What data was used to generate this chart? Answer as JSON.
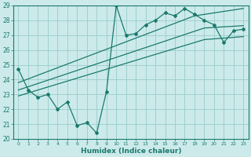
{
  "x": [
    0,
    1,
    2,
    3,
    4,
    5,
    6,
    7,
    8,
    9,
    10,
    11,
    12,
    13,
    14,
    15,
    16,
    17,
    18,
    19,
    20,
    21,
    22,
    23
  ],
  "y_main": [
    24.7,
    23.3,
    22.8,
    23.0,
    22.0,
    22.5,
    20.9,
    21.1,
    20.4,
    23.2,
    29.0,
    27.0,
    27.1,
    27.7,
    28.0,
    28.5,
    28.3,
    28.8,
    28.4,
    28.0,
    27.7,
    26.5,
    27.3,
    27.4
  ],
  "reg_top": [
    23.8,
    24.05,
    24.3,
    24.55,
    24.8,
    25.05,
    25.3,
    25.55,
    25.8,
    26.05,
    26.3,
    26.55,
    26.8,
    27.05,
    27.3,
    27.55,
    27.8,
    28.05,
    28.3,
    28.4,
    28.5,
    28.6,
    28.7,
    28.8
  ],
  "reg_mid": [
    23.3,
    23.52,
    23.74,
    23.96,
    24.18,
    24.4,
    24.62,
    24.84,
    25.06,
    25.28,
    25.5,
    25.72,
    25.94,
    26.16,
    26.38,
    26.6,
    26.82,
    27.04,
    27.26,
    27.48,
    27.52,
    27.56,
    27.6,
    27.64
  ],
  "reg_bot": [
    22.9,
    23.1,
    23.3,
    23.5,
    23.7,
    23.9,
    24.1,
    24.3,
    24.5,
    24.7,
    24.9,
    25.1,
    25.3,
    25.5,
    25.7,
    25.9,
    26.1,
    26.3,
    26.5,
    26.7,
    26.75,
    26.8,
    26.85,
    26.9
  ],
  "color": "#1a7a6e",
  "bg_color": "#cceaea",
  "grid_color": "#99cccc",
  "xlabel": "Humidex (Indice chaleur)",
  "ylim": [
    20,
    29
  ],
  "xlim": [
    -0.5,
    23.5
  ],
  "yticks": [
    20,
    21,
    22,
    23,
    24,
    25,
    26,
    27,
    28,
    29
  ],
  "xticks": [
    0,
    1,
    2,
    3,
    4,
    5,
    6,
    7,
    8,
    9,
    10,
    11,
    12,
    13,
    14,
    15,
    16,
    17,
    18,
    19,
    20,
    21,
    22,
    23
  ]
}
